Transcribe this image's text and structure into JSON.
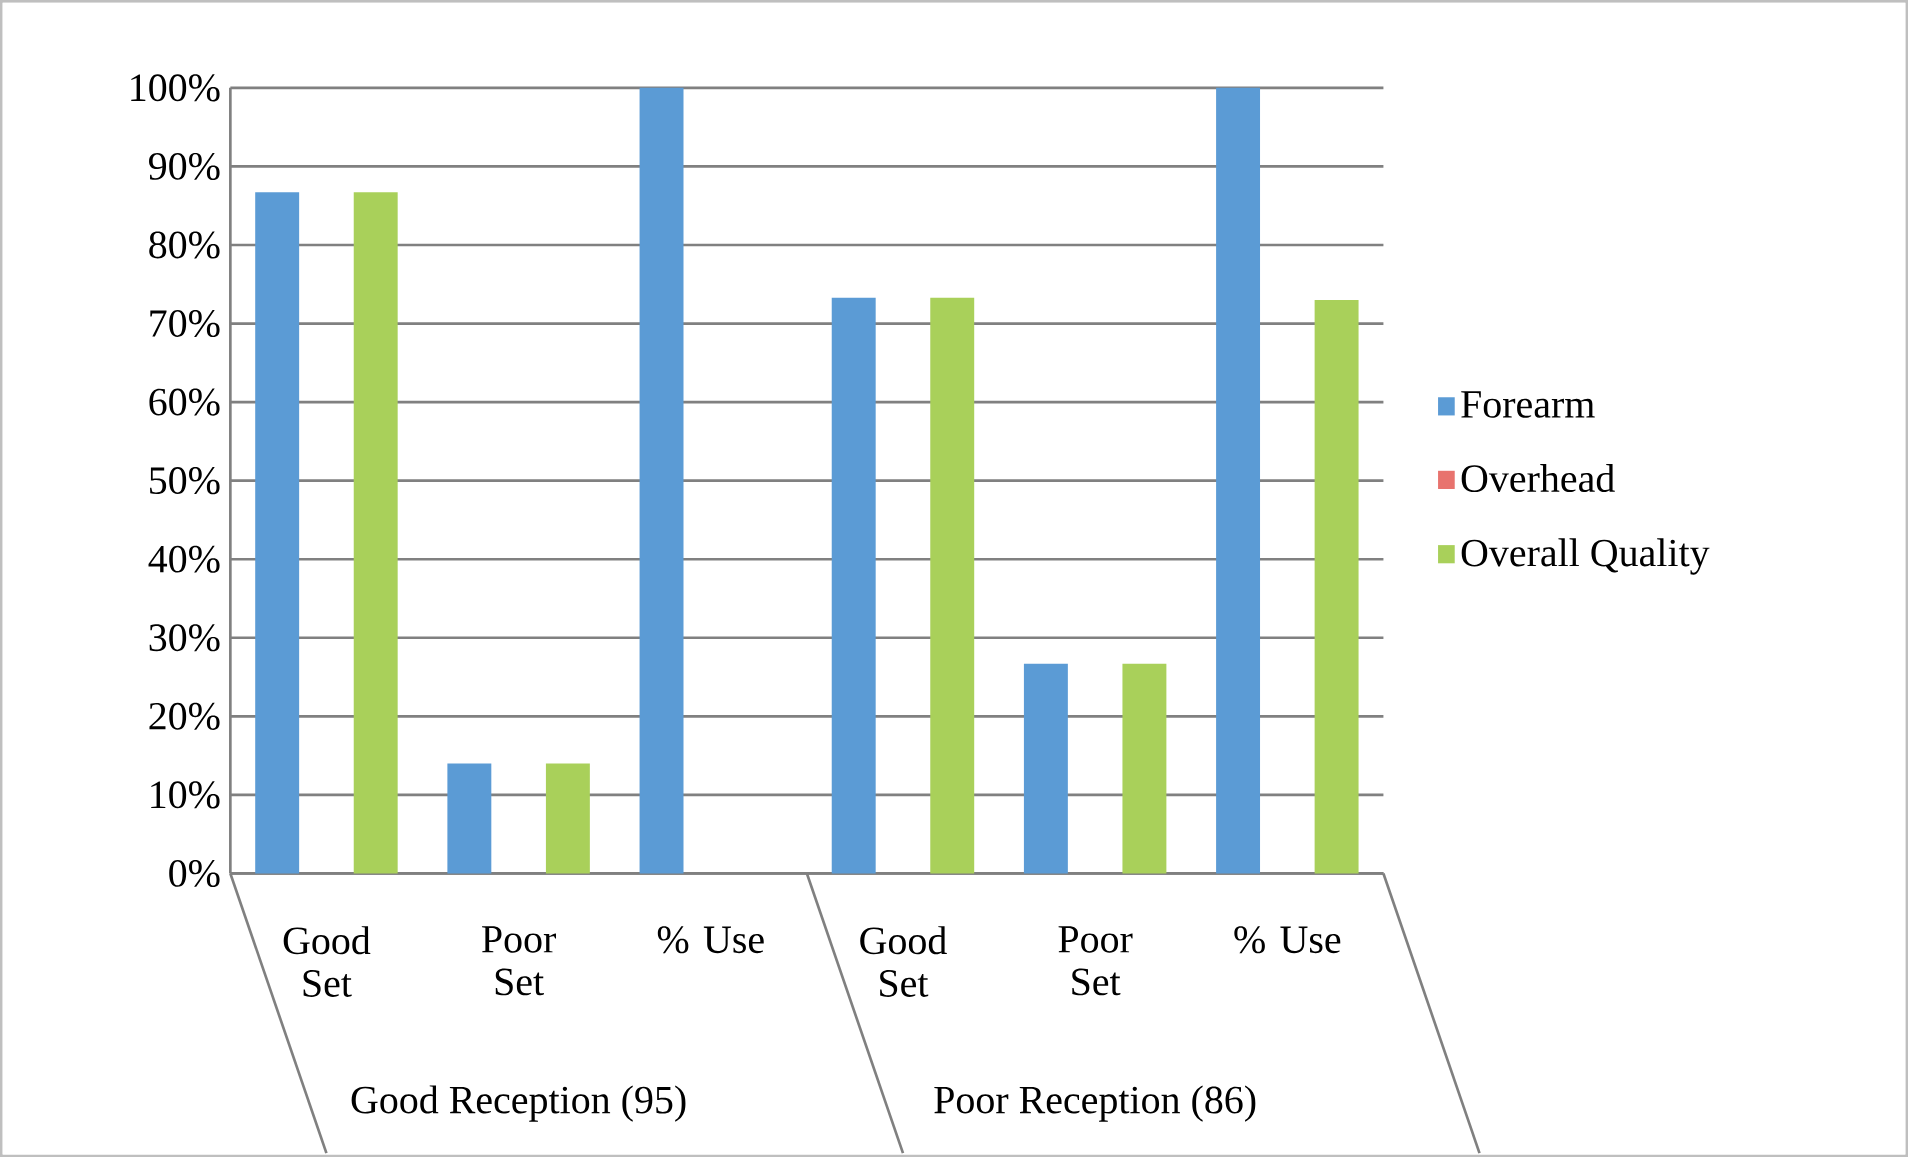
{
  "chart_data": {
    "type": "bar",
    "categories": [
      "Good Set",
      "Poor Set",
      "% Use",
      "Good Set",
      "Poor Set",
      "% Use"
    ],
    "series": [
      {
        "name": "Forearm",
        "color": "#5b9bd5",
        "values": [
          86.7,
          14,
          100,
          73.3,
          26.7,
          100
        ]
      },
      {
        "name": "Overhead",
        "color": "#e8736e",
        "values": [
          0,
          0,
          0,
          0,
          0,
          0
        ]
      },
      {
        "name": "Overall Quality",
        "color": "#a9d05a",
        "values": [
          86.7,
          14,
          0,
          73.3,
          26.7,
          73
        ]
      }
    ],
    "ylim": [
      0,
      100
    ],
    "yticks": [
      {
        "value": 0,
        "label": "0%"
      },
      {
        "value": 10,
        "label": "10%"
      },
      {
        "value": 20,
        "label": "20%"
      },
      {
        "value": 30,
        "label": "30%"
      },
      {
        "value": 40,
        "label": "40%"
      },
      {
        "value": 50,
        "label": "50%"
      },
      {
        "value": 60,
        "label": "60%"
      },
      {
        "value": 70,
        "label": "70%"
      },
      {
        "value": 80,
        "label": "80%"
      },
      {
        "value": 90,
        "label": "90%"
      },
      {
        "value": 100,
        "label": "100%"
      }
    ],
    "annotations": [
      "Good Reception (95)",
      "Poor Reception (86)"
    ],
    "grid": "y",
    "legend": "right"
  }
}
